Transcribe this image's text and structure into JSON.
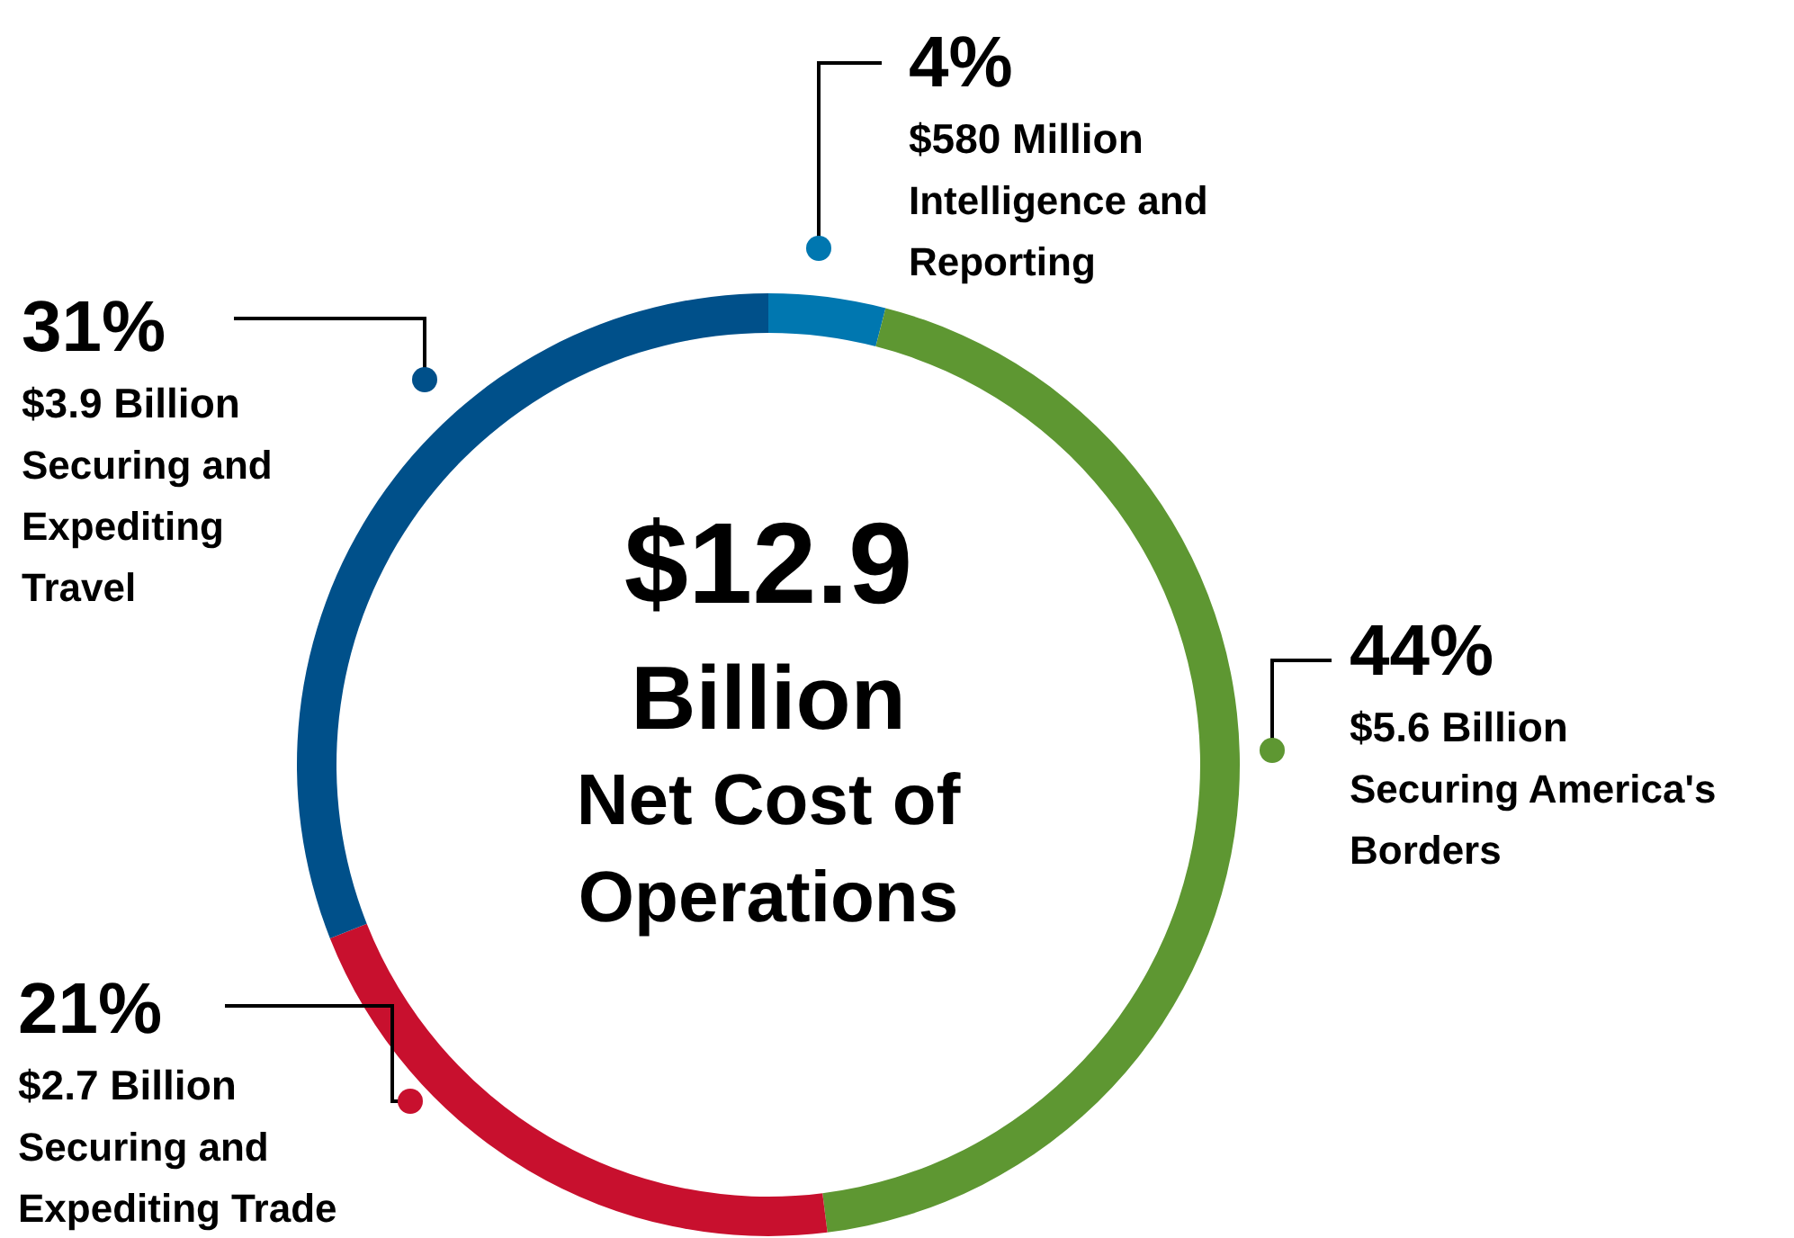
{
  "chart_data": {
    "type": "donut",
    "title": "$12.9 Billion",
    "subtitle": "Net Cost of Operations",
    "categories": [
      "Intelligence and Reporting",
      "Securing America's Borders",
      "Securing and Expediting Trade",
      "Securing and Expediting Travel"
    ],
    "values": [
      4,
      44,
      21,
      31
    ],
    "colors": [
      "#0077b0",
      "#5e9732",
      "#c8102e",
      "#00508a"
    ],
    "value_labels": [
      "4%",
      "44%",
      "21%",
      "31%"
    ],
    "annotations": [
      "$580 Million",
      "$5.6 Billion",
      "$2.7 Billion",
      "$3.9 Billion"
    ]
  }
}
